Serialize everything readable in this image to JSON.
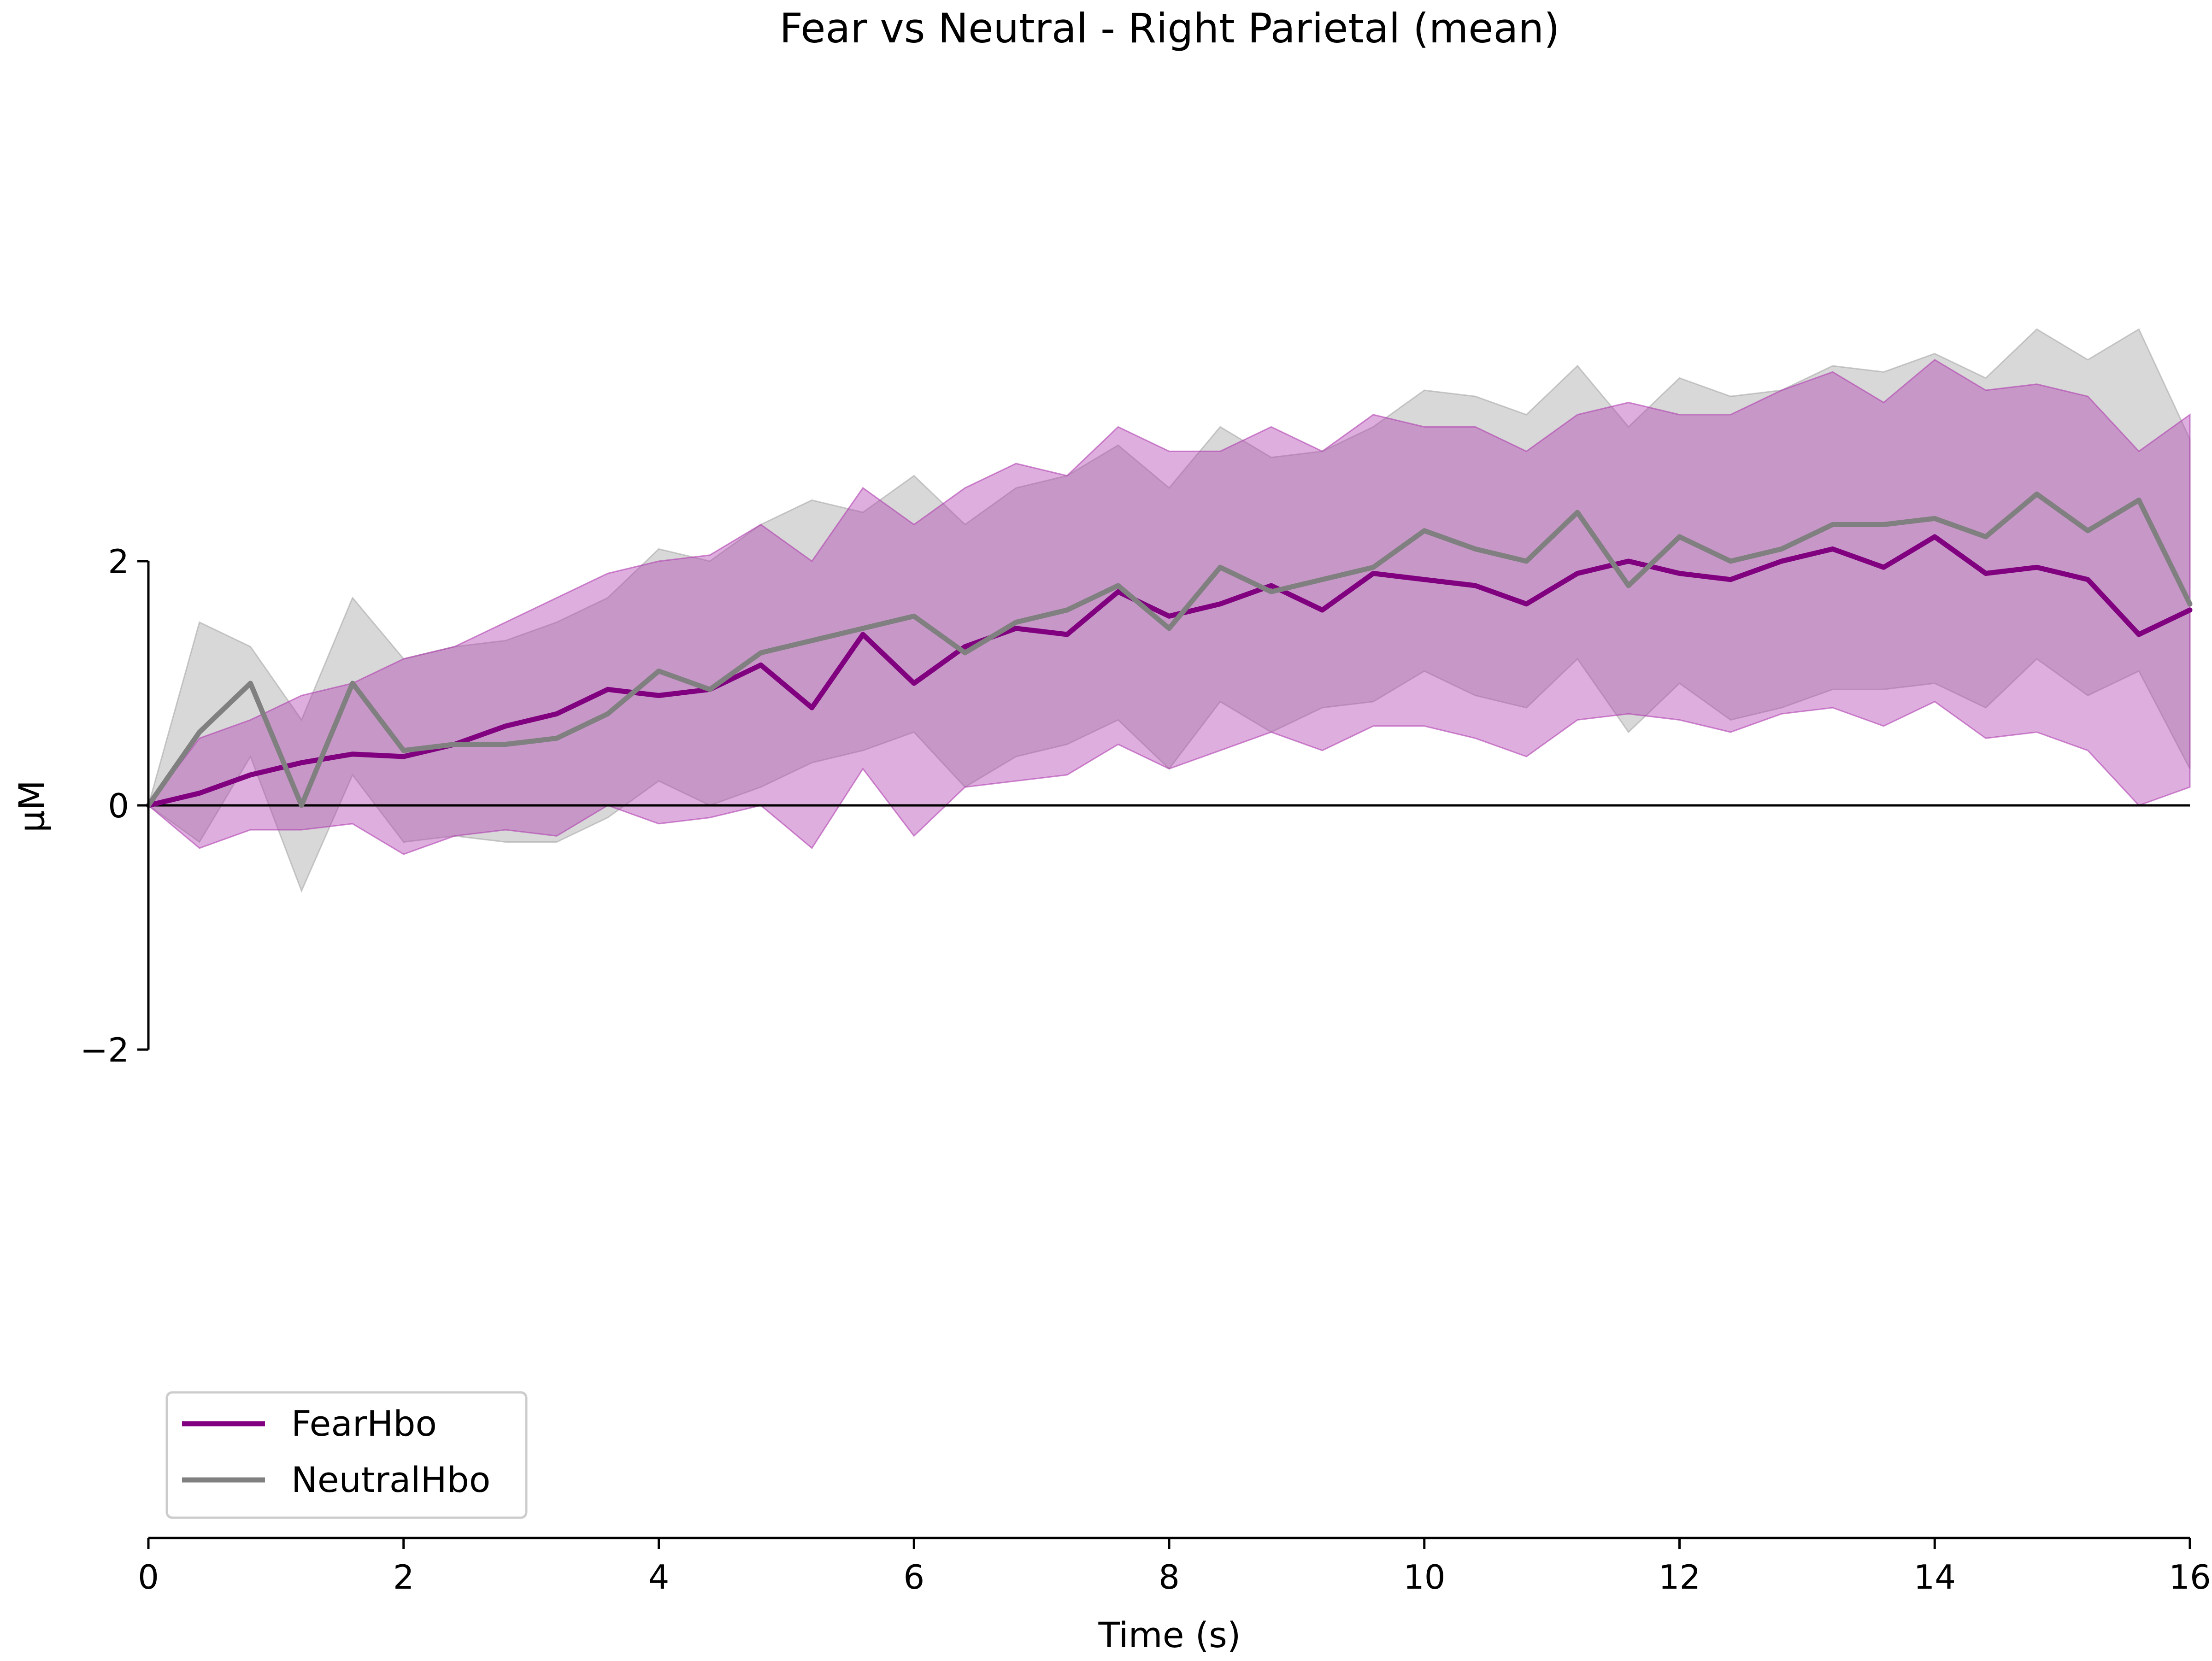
{
  "chart_data": {
    "type": "line",
    "title": "Fear vs Neutral - Right Parietal (mean)",
    "xlabel": "Time (s)",
    "ylabel": "µM",
    "xlim": [
      0,
      16
    ],
    "ylim_displayed": [
      -6.2,
      6.3
    ],
    "y_spine_range": [
      -2,
      2
    ],
    "x_ticks": [
      0,
      2,
      4,
      6,
      8,
      10,
      12,
      14,
      16
    ],
    "x_tick_labels": [
      "0",
      "2",
      "4",
      "6",
      "8",
      "10",
      "12",
      "14",
      "16"
    ],
    "y_ticks": [
      -2,
      0,
      2
    ],
    "y_tick_labels": [
      "−2",
      "0",
      "2"
    ],
    "zero_line": true,
    "grid": false,
    "legend_position": "lower-left",
    "x": [
      0,
      0.4,
      0.8,
      1.2,
      1.6,
      2.0,
      2.4,
      2.8,
      3.2,
      3.6,
      4.0,
      4.4,
      4.8,
      5.2,
      5.6,
      6.0,
      6.4,
      6.8,
      7.2,
      7.6,
      8.0,
      8.4,
      8.8,
      9.2,
      9.6,
      10.0,
      10.4,
      10.8,
      11.2,
      11.6,
      12.0,
      12.4,
      12.8,
      13.2,
      13.6,
      14.0,
      14.4,
      14.8,
      15.2,
      15.6,
      16.0
    ],
    "series": [
      {
        "name": "FearHbo",
        "color": "#800080",
        "band_color": "#b040b0",
        "values": [
          0.0,
          0.1,
          0.25,
          0.35,
          0.42,
          0.4,
          0.5,
          0.65,
          0.75,
          0.95,
          0.9,
          0.95,
          1.15,
          0.8,
          1.4,
          1.0,
          1.3,
          1.45,
          1.4,
          1.75,
          1.55,
          1.65,
          1.8,
          1.6,
          1.9,
          1.85,
          1.8,
          1.65,
          1.9,
          2.0,
          1.9,
          1.85,
          2.0,
          2.1,
          1.95,
          2.2,
          1.9,
          1.95,
          1.85,
          1.4,
          1.6
        ],
        "upper": [
          0.0,
          0.55,
          0.7,
          0.9,
          1.0,
          1.2,
          1.3,
          1.5,
          1.7,
          1.9,
          2.0,
          2.05,
          2.3,
          2.0,
          2.6,
          2.3,
          2.6,
          2.8,
          2.7,
          3.1,
          2.9,
          2.9,
          3.1,
          2.9,
          3.2,
          3.1,
          3.1,
          2.9,
          3.2,
          3.3,
          3.2,
          3.2,
          3.4,
          3.55,
          3.3,
          3.65,
          3.4,
          3.45,
          3.35,
          2.9,
          3.2
        ],
        "lower": [
          0.0,
          -0.35,
          -0.2,
          -0.2,
          -0.15,
          -0.4,
          -0.25,
          -0.2,
          -0.25,
          0.0,
          -0.15,
          -0.1,
          0.0,
          -0.35,
          0.3,
          -0.25,
          0.15,
          0.2,
          0.25,
          0.5,
          0.3,
          0.45,
          0.6,
          0.45,
          0.65,
          0.65,
          0.55,
          0.4,
          0.7,
          0.75,
          0.7,
          0.6,
          0.75,
          0.8,
          0.65,
          0.85,
          0.55,
          0.6,
          0.45,
          0.0,
          0.15
        ]
      },
      {
        "name": "NeutralHbo",
        "color": "#808080",
        "band_color": "#a9a9a9",
        "values": [
          0.0,
          0.6,
          1.0,
          0.0,
          1.0,
          0.45,
          0.5,
          0.5,
          0.55,
          0.75,
          1.1,
          0.95,
          1.25,
          1.35,
          1.45,
          1.55,
          1.25,
          1.5,
          1.6,
          1.8,
          1.45,
          1.95,
          1.75,
          1.85,
          1.95,
          2.25,
          2.1,
          2.0,
          2.4,
          1.8,
          2.2,
          2.0,
          2.1,
          2.3,
          2.3,
          2.35,
          2.2,
          2.55,
          2.25,
          2.5,
          1.65
        ],
        "upper": [
          0.0,
          1.5,
          1.3,
          0.7,
          1.7,
          1.2,
          1.3,
          1.35,
          1.5,
          1.7,
          2.1,
          2.0,
          2.3,
          2.5,
          2.4,
          2.7,
          2.3,
          2.6,
          2.7,
          2.95,
          2.6,
          3.1,
          2.85,
          2.9,
          3.1,
          3.4,
          3.35,
          3.2,
          3.6,
          3.1,
          3.5,
          3.35,
          3.4,
          3.6,
          3.55,
          3.7,
          3.5,
          3.9,
          3.65,
          3.9,
          3.0
        ],
        "lower": [
          0.0,
          -0.3,
          0.4,
          -0.7,
          0.25,
          -0.3,
          -0.25,
          -0.3,
          -0.3,
          -0.1,
          0.2,
          0.0,
          0.15,
          0.35,
          0.45,
          0.6,
          0.15,
          0.4,
          0.5,
          0.7,
          0.3,
          0.85,
          0.6,
          0.8,
          0.85,
          1.1,
          0.9,
          0.8,
          1.2,
          0.6,
          1.0,
          0.7,
          0.8,
          0.95,
          0.95,
          1.0,
          0.8,
          1.2,
          0.9,
          1.1,
          0.3
        ]
      }
    ]
  }
}
